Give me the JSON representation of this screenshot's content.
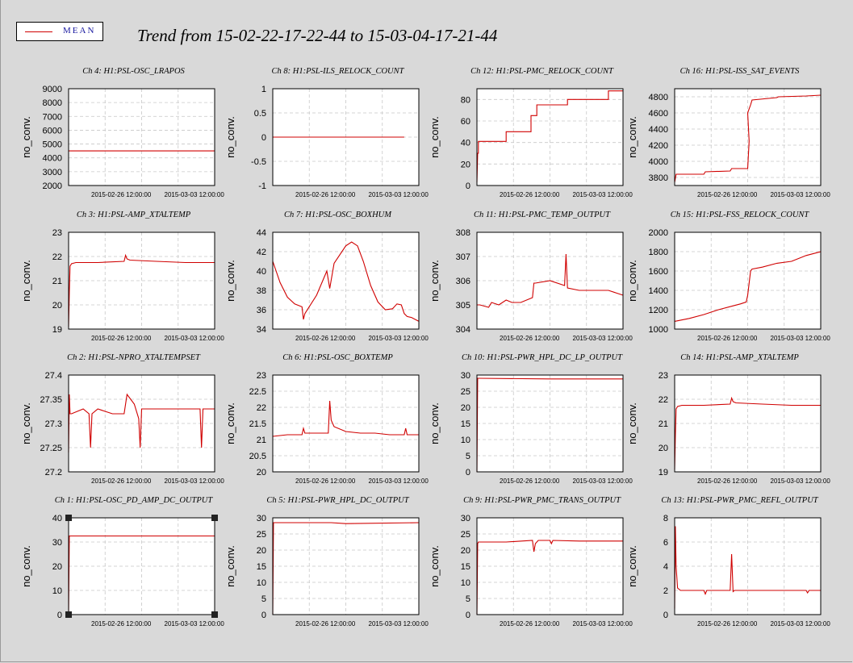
{
  "legend": {
    "label": "MEAN",
    "color": "#d00000"
  },
  "title": "Trend from 15-02-22-17-22-44 to 15-03-04-17-21-44",
  "chart_data": [
    {
      "type": "line",
      "title": "Ch 4: H1:PSL-OSC_LRAPOS",
      "ylabel": "no_conv.",
      "xticks": [
        "2015-02-26 12:00:00",
        "2015-03-03 12:00:00"
      ],
      "ylim": [
        2000,
        9000
      ],
      "yticks": [
        2000,
        3000,
        4000,
        5000,
        6000,
        7000,
        8000,
        9000
      ],
      "x": [
        0.0,
        1.0
      ],
      "y": [
        4500,
        4500
      ]
    },
    {
      "type": "line",
      "title": "Ch 8: H1:PSL-ILS_RELOCK_COUNT",
      "ylabel": "no_conv.",
      "xticks": [
        "2015-02-26 12:00:00",
        "2015-03-03 12:00:00"
      ],
      "ylim": [
        -1,
        1
      ],
      "yticks": [
        -1,
        -0.5,
        0,
        0.5,
        1
      ],
      "x": [
        0.0,
        0.9
      ],
      "y": [
        0,
        0
      ]
    },
    {
      "type": "line",
      "title": "Ch 12: H1:PSL-PMC_RELOCK_COUNT",
      "ylabel": "no_conv.",
      "xticks": [
        "2015-02-26 12:00:00",
        "2015-03-03 12:00:00"
      ],
      "ylim": [
        0,
        90
      ],
      "yticks": [
        0,
        20,
        40,
        60,
        80
      ],
      "x": [
        0.0,
        0.005,
        0.01,
        0.01,
        0.2,
        0.2,
        0.37,
        0.37,
        0.41,
        0.41,
        0.62,
        0.62,
        0.9,
        0.9,
        1.0
      ],
      "y": [
        3,
        30,
        30,
        41,
        41,
        50,
        50,
        65,
        65,
        75,
        75,
        80,
        80,
        88,
        88
      ]
    },
    {
      "type": "line",
      "title": "Ch 16: H1:PSL-ISS_SAT_EVENTS",
      "ylabel": "no_conv.",
      "xticks": [
        "2015-02-26 12:00:00",
        "2015-03-03 12:00:00"
      ],
      "ylim": [
        3700,
        4900
      ],
      "yticks": [
        3800,
        4000,
        4200,
        4400,
        4600,
        4800
      ],
      "x": [
        0.0,
        0.01,
        0.2,
        0.21,
        0.38,
        0.39,
        0.5,
        0.51,
        0.5,
        0.52,
        0.53,
        0.7,
        0.71,
        0.9,
        1.0
      ],
      "y": [
        3740,
        3840,
        3840,
        3870,
        3880,
        3910,
        3910,
        4250,
        4600,
        4700,
        4760,
        4790,
        4800,
        4810,
        4820
      ]
    },
    {
      "type": "line",
      "title": "Ch 3: H1:PSL-AMP_XTALTEMP",
      "ylabel": "no_conv.",
      "xticks": [
        "2015-02-26 12:00:00",
        "2015-03-03 12:00:00"
      ],
      "ylim": [
        19,
        23
      ],
      "yticks": [
        19,
        20,
        21,
        22,
        23
      ],
      "x": [
        0.0,
        0.005,
        0.01,
        0.02,
        0.05,
        0.2,
        0.38,
        0.39,
        0.4,
        0.42,
        0.6,
        0.8,
        1.0
      ],
      "y": [
        19.1,
        20.5,
        21.6,
        21.7,
        21.75,
        21.75,
        21.8,
        22.05,
        21.9,
        21.85,
        21.8,
        21.75,
        21.75
      ]
    },
    {
      "type": "line",
      "title": "Ch 7: H1:PSL-OSC_BOXHUM",
      "ylabel": "no_conv.",
      "xticks": [
        "2015-02-26 12:00:00",
        "2015-03-03 12:00:00"
      ],
      "ylim": [
        34,
        44
      ],
      "yticks": [
        34,
        36,
        38,
        40,
        42,
        44
      ],
      "x": [
        0.0,
        0.05,
        0.1,
        0.15,
        0.2,
        0.21,
        0.22,
        0.3,
        0.37,
        0.39,
        0.42,
        0.5,
        0.54,
        0.58,
        0.62,
        0.67,
        0.72,
        0.77,
        0.82,
        0.85,
        0.88,
        0.9,
        0.92,
        0.95,
        1.0
      ],
      "y": [
        41,
        38.8,
        37.3,
        36.6,
        36.3,
        35.0,
        35.6,
        37.5,
        40.0,
        38.2,
        40.8,
        42.6,
        43.0,
        42.6,
        41.0,
        38.5,
        36.8,
        36.0,
        36.1,
        36.6,
        36.5,
        35.6,
        35.3,
        35.2,
        34.8
      ]
    },
    {
      "type": "line",
      "title": "Ch 11: H1:PSL-PMC_TEMP_OUTPUT",
      "ylabel": "no_conv.",
      "xticks": [
        "2015-02-26 12:00:00",
        "2015-03-03 12:00:00"
      ],
      "ylim": [
        304,
        308
      ],
      "yticks": [
        304,
        305,
        306,
        307,
        308
      ],
      "x": [
        0.0,
        0.02,
        0.08,
        0.1,
        0.15,
        0.2,
        0.24,
        0.3,
        0.38,
        0.39,
        0.4,
        0.5,
        0.6,
        0.61,
        0.62,
        0.7,
        0.8,
        0.9,
        1.0
      ],
      "y": [
        305.0,
        305.0,
        304.9,
        305.1,
        305.0,
        305.2,
        305.1,
        305.1,
        305.3,
        305.9,
        305.9,
        306.0,
        305.8,
        307.1,
        305.7,
        305.6,
        305.6,
        305.6,
        305.4
      ]
    },
    {
      "type": "line",
      "title": "Ch 15: H1:PSL-FSS_RELOCK_COUNT",
      "ylabel": "no_conv.",
      "xticks": [
        "2015-02-26 12:00:00",
        "2015-03-03 12:00:00"
      ],
      "ylim": [
        1000,
        2000
      ],
      "yticks": [
        1000,
        1200,
        1400,
        1600,
        1800,
        2000
      ],
      "x": [
        0.0,
        0.1,
        0.2,
        0.3,
        0.4,
        0.45,
        0.49,
        0.5,
        0.52,
        0.53,
        0.6,
        0.7,
        0.8,
        0.9,
        1.0
      ],
      "y": [
        1080,
        1110,
        1150,
        1200,
        1240,
        1260,
        1280,
        1350,
        1600,
        1620,
        1640,
        1680,
        1700,
        1760,
        1800
      ]
    },
    {
      "type": "line",
      "title": "Ch 2: H1:PSL-NPRO_XTALTEMPSET",
      "ylabel": "no_conv.",
      "xticks": [
        "2015-02-26 12:00:00",
        "2015-03-03 12:00:00"
      ],
      "ylim": [
        27.2,
        27.4
      ],
      "yticks": [
        27.2,
        27.25,
        27.3,
        27.35,
        27.4
      ],
      "x": [
        0.0,
        0.005,
        0.01,
        0.02,
        0.1,
        0.14,
        0.15,
        0.16,
        0.2,
        0.3,
        0.38,
        0.4,
        0.45,
        0.48,
        0.49,
        0.5,
        0.55,
        0.7,
        0.9,
        0.91,
        0.92,
        1.0
      ],
      "y": [
        27.24,
        27.36,
        27.32,
        27.32,
        27.33,
        27.32,
        27.25,
        27.32,
        27.33,
        27.32,
        27.32,
        27.36,
        27.34,
        27.31,
        27.25,
        27.33,
        27.33,
        27.33,
        27.33,
        27.25,
        27.33,
        27.33
      ]
    },
    {
      "type": "line",
      "title": "Ch 6: H1:PSL-OSC_BOXTEMP",
      "ylabel": "no_conv.",
      "xticks": [
        "2015-02-26 12:00:00",
        "2015-03-03 12:00:00"
      ],
      "ylim": [
        20,
        23
      ],
      "yticks": [
        20,
        20.5,
        21,
        21.5,
        22,
        22.5,
        23
      ],
      "x": [
        0.0,
        0.1,
        0.2,
        0.21,
        0.22,
        0.3,
        0.38,
        0.39,
        0.4,
        0.42,
        0.5,
        0.6,
        0.7,
        0.8,
        0.9,
        0.91,
        0.92,
        1.0
      ],
      "y": [
        21.1,
        21.15,
        21.15,
        21.35,
        21.2,
        21.2,
        21.2,
        22.2,
        21.6,
        21.4,
        21.25,
        21.2,
        21.2,
        21.15,
        21.15,
        21.35,
        21.15,
        21.15
      ]
    },
    {
      "type": "line",
      "title": "Ch 10: H1:PSL-PWR_HPL_DC_LP_OUTPUT",
      "ylabel": "no_conv.",
      "xticks": [
        "2015-02-26 12:00:00",
        "2015-03-03 12:00:00"
      ],
      "ylim": [
        0,
        30
      ],
      "yticks": [
        0,
        5,
        10,
        15,
        20,
        25,
        30
      ],
      "x": [
        0.0,
        0.005,
        0.01,
        0.5,
        1.0
      ],
      "y": [
        0,
        29,
        29,
        28.8,
        28.8
      ]
    },
    {
      "type": "line",
      "title": "Ch 14: H1:PSL-AMP_XTALTEMP",
      "ylabel": "no_conv.",
      "xticks": [
        "2015-02-26 12:00:00",
        "2015-03-03 12:00:00"
      ],
      "ylim": [
        19,
        23
      ],
      "yticks": [
        19,
        20,
        21,
        22,
        23
      ],
      "x": [
        0.0,
        0.005,
        0.01,
        0.02,
        0.05,
        0.2,
        0.38,
        0.39,
        0.4,
        0.42,
        0.6,
        0.8,
        1.0
      ],
      "y": [
        19.1,
        20.5,
        21.6,
        21.7,
        21.75,
        21.75,
        21.8,
        22.05,
        21.9,
        21.85,
        21.8,
        21.75,
        21.75
      ]
    },
    {
      "type": "line",
      "title": "Ch 1: H1:PSL-OSC_PD_AMP_DC_OUTPUT",
      "ylabel": "no_conv.",
      "xticks": [
        "2015-02-26 12:00:00",
        "2015-03-03 12:00:00"
      ],
      "ylim": [
        0,
        40
      ],
      "yticks": [
        0,
        10,
        20,
        30,
        40
      ],
      "x": [
        0.0,
        0.005,
        0.01,
        1.0
      ],
      "y": [
        0,
        32.5,
        32.5,
        32.5
      ]
    },
    {
      "type": "line",
      "title": "Ch 5: H1:PSL-PWR_HPL_DC_OUTPUT",
      "ylabel": "no_conv.",
      "xticks": [
        "2015-02-26 12:00:00",
        "2015-03-03 12:00:00"
      ],
      "ylim": [
        0,
        30
      ],
      "yticks": [
        0,
        5,
        10,
        15,
        20,
        25,
        30
      ],
      "x": [
        0.0,
        0.005,
        0.01,
        0.4,
        0.5,
        1.0
      ],
      "y": [
        0,
        28.5,
        28.5,
        28.5,
        28.2,
        28.5
      ]
    },
    {
      "type": "line",
      "title": "Ch 9: H1:PSL-PWR_PMC_TRANS_OUTPUT",
      "ylabel": "no_conv.",
      "xticks": [
        "2015-02-26 12:00:00",
        "2015-03-03 12:00:00"
      ],
      "ylim": [
        0,
        30
      ],
      "yticks": [
        0,
        5,
        10,
        15,
        20,
        25,
        30
      ],
      "x": [
        0.0,
        0.005,
        0.01,
        0.2,
        0.38,
        0.39,
        0.4,
        0.42,
        0.5,
        0.51,
        0.52,
        0.7,
        1.0
      ],
      "y": [
        0,
        22,
        22.5,
        22.5,
        23.0,
        19.5,
        22.0,
        23.0,
        23.0,
        22.0,
        23.0,
        22.8,
        22.8
      ]
    },
    {
      "type": "line",
      "title": "Ch 13: H1:PSL-PWR_PMC_REFL_OUTPUT",
      "ylabel": "no_conv.",
      "xticks": [
        "2015-02-26 12:00:00",
        "2015-03-03 12:00:00"
      ],
      "ylim": [
        0,
        8
      ],
      "yticks": [
        0,
        2,
        4,
        6,
        8
      ],
      "x": [
        0.0,
        0.005,
        0.01,
        0.02,
        0.04,
        0.1,
        0.2,
        0.21,
        0.22,
        0.3,
        0.38,
        0.39,
        0.4,
        0.41,
        0.5,
        0.7,
        0.9,
        0.91,
        0.92,
        1.0
      ],
      "y": [
        0.5,
        7.3,
        4.0,
        2.2,
        2.0,
        2.0,
        2.0,
        1.7,
        2.0,
        2.0,
        2.0,
        5.0,
        1.9,
        2.0,
        2.0,
        2.0,
        2.0,
        1.8,
        2.0,
        2.0
      ]
    }
  ]
}
